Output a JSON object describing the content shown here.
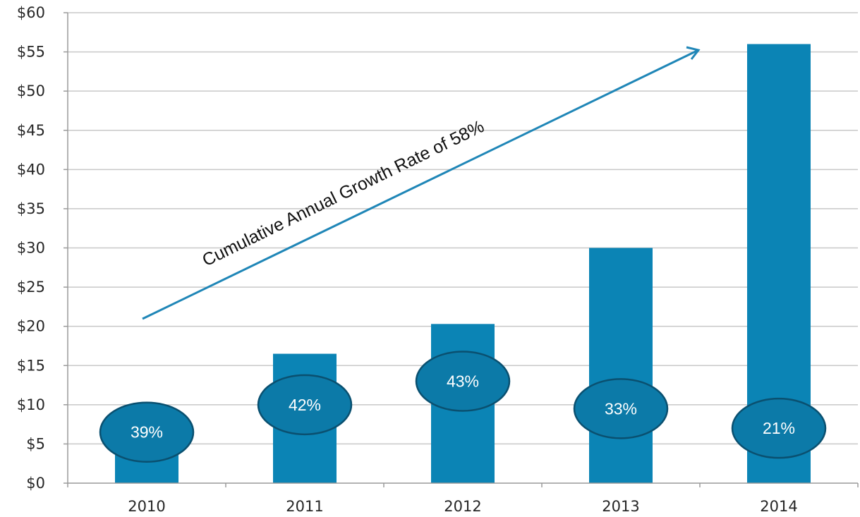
{
  "chart_data": {
    "type": "bar",
    "categories": [
      "2010",
      "2011",
      "2012",
      "2013",
      "2014"
    ],
    "values": [
      6,
      16.5,
      20.3,
      30,
      56
    ],
    "bubble_labels": [
      "39%",
      "42%",
      "43%",
      "33%",
      "21%"
    ],
    "bubble_y": [
      6.5,
      10,
      13,
      9.5,
      7
    ],
    "ylim": [
      0,
      60
    ],
    "ytick_step": 5,
    "ytick_labels": [
      "$0",
      "$5",
      "$10",
      "$15",
      "$20",
      "$25",
      "$30",
      "$35",
      "$40",
      "$45",
      "$50",
      "$55",
      "$60"
    ],
    "annotation": "Cumulative Annual Growth Rate of 58%",
    "grid": true,
    "colors": {
      "bar": "#0b84b5",
      "bubble_fill": "#0c7aa8",
      "bubble_stroke": "#0a5070",
      "arrow": "#1f86b7",
      "grid": "#c8c8c8",
      "axis": "#9a9a9a"
    }
  }
}
